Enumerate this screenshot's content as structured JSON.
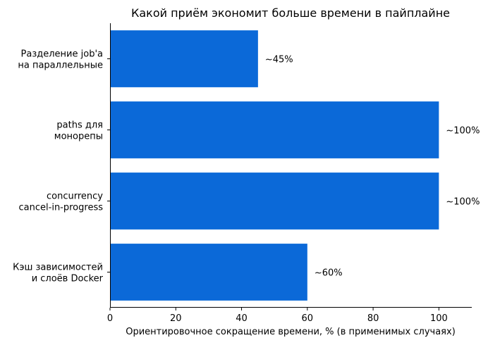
{
  "chart_data": {
    "type": "bar",
    "orientation": "horizontal",
    "title": "Какой приём экономит больше времени в пайплайне",
    "xlabel": "Ориентировочное сокращение времени, % (в применимых случаях)",
    "ylabel": "",
    "xlim": [
      0,
      110
    ],
    "xticks": [
      0,
      20,
      40,
      60,
      80,
      100
    ],
    "categories": [
      [
        "Разделение job'а",
        "на параллельные"
      ],
      [
        "paths для",
        "монорепы"
      ],
      [
        "concurrency",
        "cancel-in-progress"
      ],
      [
        "Кэш зависимостей",
        "и слоёв Docker"
      ]
    ],
    "values": [
      45,
      100,
      100,
      60
    ],
    "value_labels": [
      "~45%",
      "~100%",
      "~100%",
      "~60%"
    ],
    "bar_color": "#0b69d8",
    "grid": false
  }
}
